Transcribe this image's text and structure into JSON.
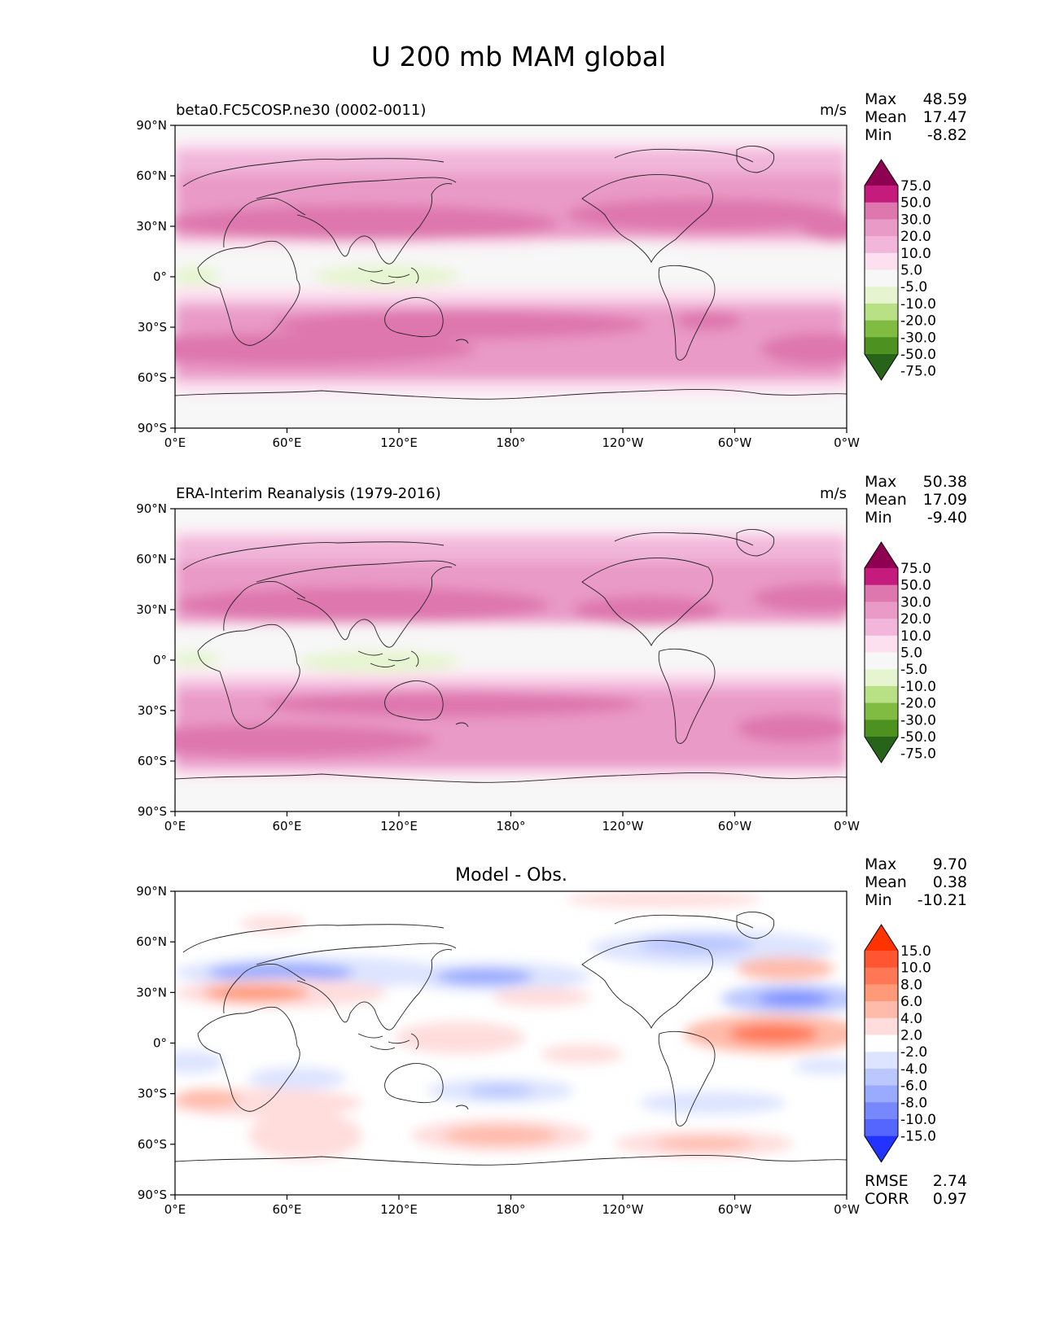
{
  "figure_title": "U 200 mb MAM global",
  "x_ticks": [
    "0°E",
    "60°E",
    "120°E",
    "180°",
    "120°W",
    "60°W",
    "0°W"
  ],
  "y_ticks": [
    "90°N",
    "60°N",
    "30°N",
    "0°",
    "30°S",
    "60°S",
    "90°S"
  ],
  "panels": [
    {
      "label": "beta0.FC5COSP.ne30 (0002-0011)",
      "units": "m/s",
      "stats": [
        [
          "Max",
          "48.59"
        ],
        [
          "Mean",
          "17.47"
        ],
        [
          "Min",
          "-8.82"
        ]
      ],
      "colorbar_labels": [
        "75.0",
        "50.0",
        "30.0",
        "20.0",
        "10.0",
        "5.0",
        "-5.0",
        "-10.0",
        "-20.0",
        "-30.0",
        "-50.0",
        "-75.0"
      ]
    },
    {
      "label": "ERA-Interim Reanalysis (1979-2016)",
      "units": "m/s",
      "stats": [
        [
          "Max",
          "50.38"
        ],
        [
          "Mean",
          "17.09"
        ],
        [
          "Min",
          "-9.40"
        ]
      ],
      "colorbar_labels": [
        "75.0",
        "50.0",
        "30.0",
        "20.0",
        "10.0",
        "5.0",
        "-5.0",
        "-10.0",
        "-20.0",
        "-30.0",
        "-50.0",
        "-75.0"
      ]
    },
    {
      "center_title": "Model - Obs.",
      "stats": [
        [
          "Max",
          "9.70"
        ],
        [
          "Mean",
          "0.38"
        ],
        [
          "Min",
          "-10.21"
        ]
      ],
      "colorbar_labels": [
        "15.0",
        "10.0",
        "8.0",
        "6.0",
        "4.0",
        "2.0",
        "-2.0",
        "-4.0",
        "-6.0",
        "-8.0",
        "-10.0",
        "-15.0"
      ],
      "extra_stats": [
        [
          "RMSE",
          "2.74"
        ],
        [
          "CORR",
          "0.97"
        ]
      ]
    }
  ],
  "colors": {
    "field": [
      "#8e0152",
      "#c51b7d",
      "#de77ae",
      "#e99ac6",
      "#f1b6da",
      "#fde0ef",
      "#f7f7f7",
      "#e6f5d0",
      "#b8e186",
      "#7fbc41",
      "#4d9221",
      "#276419"
    ],
    "diff": [
      "#ff3300",
      "#ff5533",
      "#ff7755",
      "#ff9977",
      "#ffbbaa",
      "#ffdddd",
      "#ffffff",
      "#dde4ff",
      "#bbc8ff",
      "#99aaff",
      "#7788ff",
      "#5566ff",
      "#2233ff"
    ]
  },
  "chart_data": [
    {
      "type": "heatmap",
      "title": "beta0.FC5COSP.ne30 (0002-0011)",
      "variable": "U 200 mb MAM global",
      "units": "m/s",
      "xlim": [
        0,
        360
      ],
      "ylim": [
        -90,
        90
      ],
      "levels": [
        -75,
        -50,
        -30,
        -20,
        -10,
        -5,
        5,
        10,
        20,
        30,
        50,
        75
      ],
      "zonal_mean_profile": {
        "lat": [
          90,
          80,
          70,
          60,
          50,
          40,
          30,
          20,
          10,
          0,
          -10,
          -20,
          -30,
          -40,
          -50,
          -60,
          -70,
          -80,
          -90
        ],
        "u": [
          0,
          8,
          12,
          18,
          18,
          25,
          32,
          25,
          10,
          0,
          5,
          15,
          28,
          28,
          25,
          20,
          12,
          4,
          0
        ]
      },
      "jet_cores": [
        {
          "lon": 100,
          "lat": 32
        },
        {
          "lon": 300,
          "lat": 32
        },
        {
          "lon": 140,
          "lat": -35
        },
        {
          "lon": 30,
          "lat": -45
        }
      ],
      "easterly_regions": [
        {
          "lon": 110,
          "lat": 0
        },
        {
          "lon": 20,
          "lat": 0
        }
      ],
      "stats": {
        "max": 48.59,
        "mean": 17.47,
        "min": -8.82
      }
    },
    {
      "type": "heatmap",
      "title": "ERA-Interim Reanalysis (1979-2016)",
      "variable": "U 200 mb MAM global",
      "units": "m/s",
      "xlim": [
        0,
        360
      ],
      "ylim": [
        -90,
        90
      ],
      "levels": [
        -75,
        -50,
        -30,
        -20,
        -10,
        -5,
        5,
        10,
        20,
        30,
        50,
        75
      ],
      "zonal_mean_profile": {
        "lat": [
          90,
          80,
          70,
          60,
          50,
          40,
          30,
          20,
          10,
          0,
          -10,
          -20,
          -30,
          -40,
          -50,
          -60,
          -70,
          -80,
          -90
        ],
        "u": [
          0,
          5,
          10,
          15,
          17,
          25,
          33,
          25,
          10,
          0,
          5,
          15,
          28,
          28,
          25,
          18,
          10,
          3,
          0
        ]
      },
      "jet_cores": [
        {
          "lon": 125,
          "lat": 32
        },
        {
          "lon": 280,
          "lat": 30
        },
        {
          "lon": 150,
          "lat": -33
        },
        {
          "lon": 30,
          "lat": -47
        }
      ],
      "easterly_regions": [
        {
          "lon": 110,
          "lat": 0
        },
        {
          "lon": 20,
          "lat": 0
        }
      ],
      "stats": {
        "max": 50.38,
        "mean": 17.09,
        "min": -9.4
      }
    },
    {
      "type": "heatmap",
      "title": "Model - Obs.",
      "variable": "U 200 mb MAM global",
      "xlim": [
        0,
        360
      ],
      "ylim": [
        -90,
        90
      ],
      "levels": [
        -15,
        -10,
        -8,
        -6,
        -4,
        -2,
        2,
        4,
        6,
        8,
        10,
        15
      ],
      "positive_anomalies": [
        {
          "lon": 60,
          "lat": 25
        },
        {
          "lon": 325,
          "lat": 5
        },
        {
          "lon": 330,
          "lat": 38
        },
        {
          "lon": 175,
          "lat": -48
        },
        {
          "lon": 290,
          "lat": -53
        },
        {
          "lon": 20,
          "lat": -35
        }
      ],
      "negative_anomalies": [
        {
          "lon": 70,
          "lat": 37
        },
        {
          "lon": 150,
          "lat": 34
        },
        {
          "lon": 330,
          "lat": 25
        },
        {
          "lon": 290,
          "lat": 52
        },
        {
          "lon": 160,
          "lat": -27
        }
      ],
      "stats": {
        "max": 9.7,
        "mean": 0.38,
        "min": -10.21,
        "rmse": 2.74,
        "corr": 0.97
      }
    }
  ]
}
